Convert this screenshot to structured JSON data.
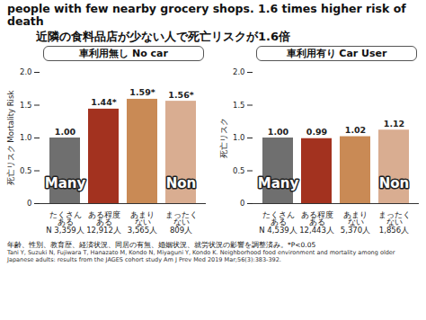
{
  "title": "people with few nearby grocery shops. 1.6 times higher risk of death",
  "subtitle": "近隣の食料品店が少ない人で死亡リスクが1.6倍",
  "note": "年齢、性別、教育歴、経済状況、同居の有無、婚姻状況、就労状況の影響を調整済み。*P<0.05",
  "citation": "Tani Y, Suzuki N, Fujiwara T, Hanazato M, Kondo N, Miyaguni Y, Kondo K. Neighborhood food environment and mortality among older Japanese adults: results from the JAGES cohort study Am J Prev Med 2019 Mar;56(3):383-392.",
  "chart_data": [
    {
      "type": "bar",
      "title": "車利用無し No car",
      "y_label": "死亡リスク Mortality Risk",
      "categories": [
        "たくさん\nある",
        "ある程度\nある",
        "あまり\nない",
        "まったく\nない"
      ],
      "n_labels": [
        "N 3,359人",
        "12,912人",
        "3,565人",
        "809人"
      ],
      "values": [
        1.0,
        1.44,
        1.59,
        1.56
      ],
      "value_labels": [
        "1.00",
        "1.44*",
        "1.59*",
        "1.56*"
      ],
      "colors": [
        "#6f6f6f",
        "#a3321f",
        "#c98a55",
        "#d9ad91"
      ],
      "annotations": [
        {
          "text": "Many",
          "category": "たくさん\nある"
        },
        {
          "text": "Non",
          "category": "まったく\nない"
        }
      ],
      "ylim": [
        0,
        2.0
      ],
      "yticks": [
        0,
        0.5,
        {
          "value": 1.0,
          "label": "1.0"
        },
        1.5,
        {
          "value": 2.0,
          "label": "2.0"
        }
      ],
      "grid": false,
      "data_labels": true
    },
    {
      "type": "bar",
      "title": "車利用有り Car User",
      "y_label": "死亡リスク",
      "categories": [
        "たくさん\nある",
        "ある程度\nある",
        "あまり\nない",
        "まったく\nない"
      ],
      "n_labels": [
        "N 4,539人",
        "12,443人",
        "5,370人",
        "1,856人"
      ],
      "values": [
        1.0,
        0.99,
        1.02,
        1.12
      ],
      "value_labels": [
        "1.00",
        "0.99",
        "1.02",
        "1.12"
      ],
      "colors": [
        "#6f6f6f",
        "#a3321f",
        "#c98a55",
        "#d9ad91"
      ],
      "annotations": [
        {
          "text": "Many",
          "category": "たくさん\nある"
        },
        {
          "text": "Non",
          "category": "まったく\nない"
        }
      ],
      "ylim": [
        0,
        2.0
      ],
      "yticks": [
        0,
        0.5,
        {
          "value": 1.0,
          "label": "1.0"
        },
        1.5,
        {
          "value": 2.0,
          "label": "2.0"
        }
      ],
      "grid": false,
      "data_labels": true
    }
  ]
}
